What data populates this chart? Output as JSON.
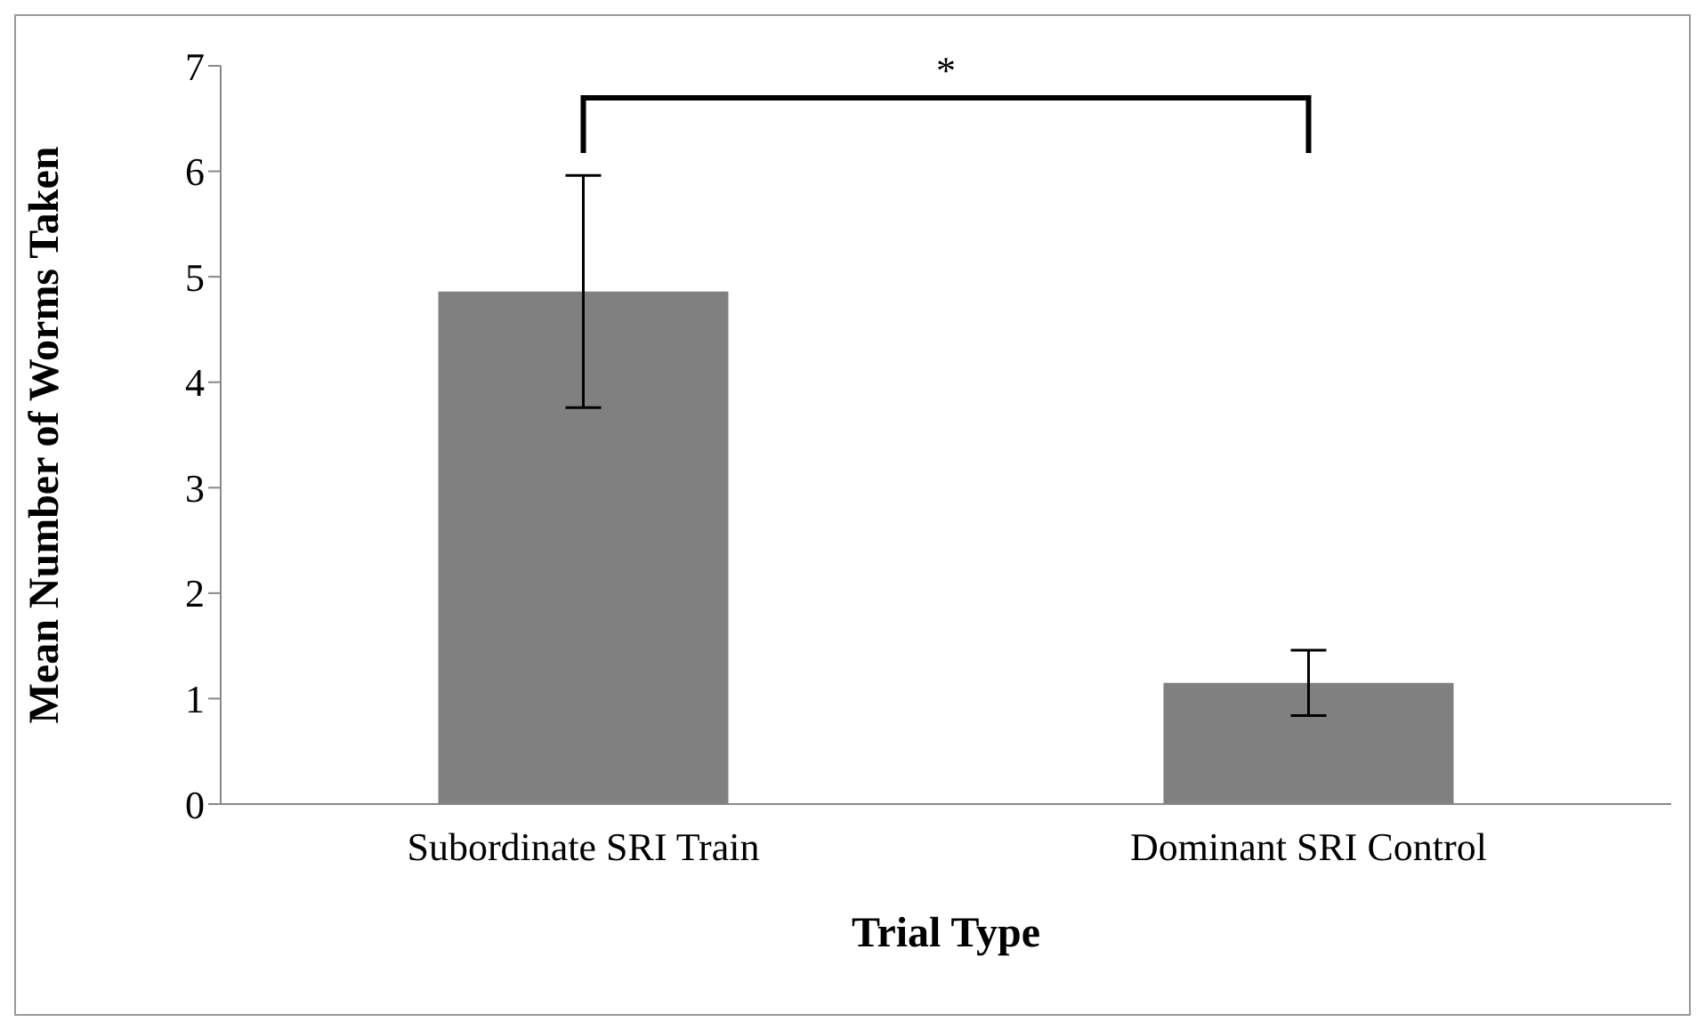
{
  "chart_data": {
    "type": "bar",
    "categories": [
      "Subordinate SRI Train",
      "Dominant SRI  Control"
    ],
    "values": [
      4.86,
      1.15
    ],
    "errors": [
      1.1,
      0.31
    ],
    "color": "#808080",
    "ylim": [
      0,
      7
    ],
    "yticks": [
      0,
      1,
      2,
      3,
      4,
      5,
      6,
      7
    ],
    "xlabel": "Trial Type",
    "ylabel": "Mean Number of Worms Taken",
    "annotations": [
      "*"
    ]
  }
}
